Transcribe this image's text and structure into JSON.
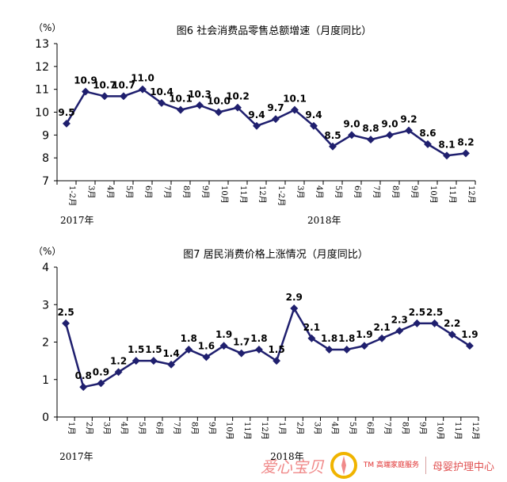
{
  "chart_data": [
    {
      "type": "line",
      "title": "图6  社会消费品零售总额增速（月度同比）",
      "unit_label": "（%）",
      "ylim": [
        7,
        13
      ],
      "yticks": [
        "7",
        "8",
        "9",
        "10",
        "11",
        "12",
        "13"
      ],
      "categories": [
        "1-2月",
        "3月",
        "4月",
        "5月",
        "6月",
        "7月",
        "8月",
        "9月",
        "10月",
        "11月",
        "12月",
        "1-2月",
        "3月",
        "4月",
        "5月",
        "6月",
        "7月",
        "8月",
        "9月",
        "10月",
        "11月",
        "12月"
      ],
      "values": [
        9.5,
        10.9,
        10.7,
        10.7,
        11.0,
        10.4,
        10.1,
        10.3,
        10.0,
        10.2,
        9.4,
        9.7,
        10.1,
        9.4,
        8.5,
        9.0,
        8.8,
        9.0,
        9.2,
        8.6,
        8.1,
        8.2
      ],
      "data_labels": [
        "9.5",
        "10.9",
        "10.7",
        "10.7",
        "11.0",
        "10.4",
        "10.1",
        "10.3",
        "10.0",
        "10.2",
        "9.4",
        "9.7",
        "10.1",
        "9.4",
        "8.5",
        "9.0",
        "8.8",
        "9.0",
        "9.2",
        "8.6",
        "8.1",
        "8.2"
      ],
      "year_labels": [
        {
          "text": "2017年",
          "index": 0
        },
        {
          "text": "2018年",
          "index": 13
        }
      ],
      "series_color": "#1f1f6e",
      "grid": false,
      "legend": "none"
    },
    {
      "type": "line",
      "title": "图7  居民消费价格上涨情况（月度同比）",
      "unit_label": "（%）",
      "ylim": [
        0,
        4
      ],
      "yticks": [
        "0",
        "1",
        "2",
        "3",
        "4"
      ],
      "categories": [
        "1月",
        "2月",
        "3月",
        "4月",
        "5月",
        "6月",
        "7月",
        "8月",
        "9月",
        "10月",
        "11月",
        "12月",
        "1月",
        "2月",
        "3月",
        "4月",
        "5月",
        "6月",
        "7月",
        "8月",
        "9月",
        "10月",
        "11月",
        "12月"
      ],
      "values": [
        2.5,
        0.8,
        0.9,
        1.2,
        1.5,
        1.5,
        1.4,
        1.8,
        1.6,
        1.9,
        1.7,
        1.8,
        1.5,
        2.9,
        2.1,
        1.8,
        1.8,
        1.9,
        2.1,
        2.3,
        2.5,
        2.5,
        2.2,
        1.9
      ],
      "data_labels": [
        "2.5",
        "0.8",
        "0.9",
        "1.2",
        "1.5",
        "1.5",
        "1.4",
        "1.8",
        "1.6",
        "1.9",
        "1.7",
        "1.8",
        "1.5",
        "2.9",
        "2.1",
        "1.8",
        "1.8",
        "1.9",
        "2.1",
        "2.3",
        "2.5",
        "2.5",
        "2.2",
        "1.9"
      ],
      "year_labels": [
        {
          "text": "2017年",
          "index": 0
        },
        {
          "text": "2018年",
          "index": 12
        }
      ],
      "series_color": "#1f1f6e",
      "grid": false,
      "legend": "none"
    }
  ],
  "watermark": {
    "brand": "爱心宝贝",
    "tm_line": "TM 高端家庭服务",
    "sub": "母婴护理中心",
    "logo_color": "#f0b400"
  }
}
